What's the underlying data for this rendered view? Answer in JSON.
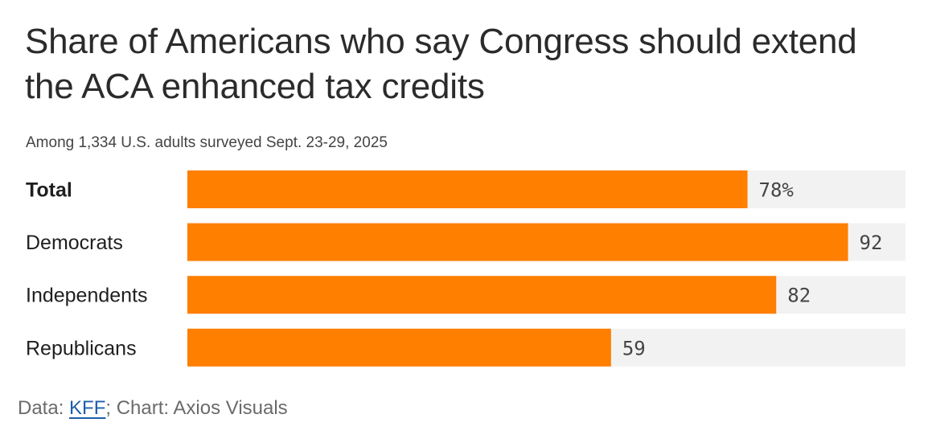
{
  "header": {
    "title": "Share of Americans who say Congress should extend the ACA enhanced tax credits",
    "subtitle": "Among 1,334 U.S. adults surveyed Sept. 23-29, 2025"
  },
  "footer": {
    "prefix": "Data: ",
    "source_link": "KFF",
    "suffix": "; Chart: Axios Visuals"
  },
  "colors": {
    "bar": "#ff7f00",
    "track": "#f2f2f2",
    "link": "#1f5ea8"
  },
  "chart_data": {
    "type": "bar",
    "orientation": "horizontal",
    "title": "Share of Americans who say Congress should extend the ACA enhanced tax credits",
    "subtitle": "Among 1,334 U.S. adults surveyed Sept. 23-29, 2025",
    "categories": [
      "Total",
      "Democrats",
      "Independents",
      "Republicans"
    ],
    "values": [
      78,
      92,
      82,
      59
    ],
    "value_labels": [
      "78%",
      "92",
      "82",
      "59"
    ],
    "bold_categories": [
      "Total"
    ],
    "unit": "%",
    "xlim": [
      0,
      100
    ],
    "xlabel": "",
    "ylabel": "",
    "grid": false,
    "legend": "none"
  }
}
